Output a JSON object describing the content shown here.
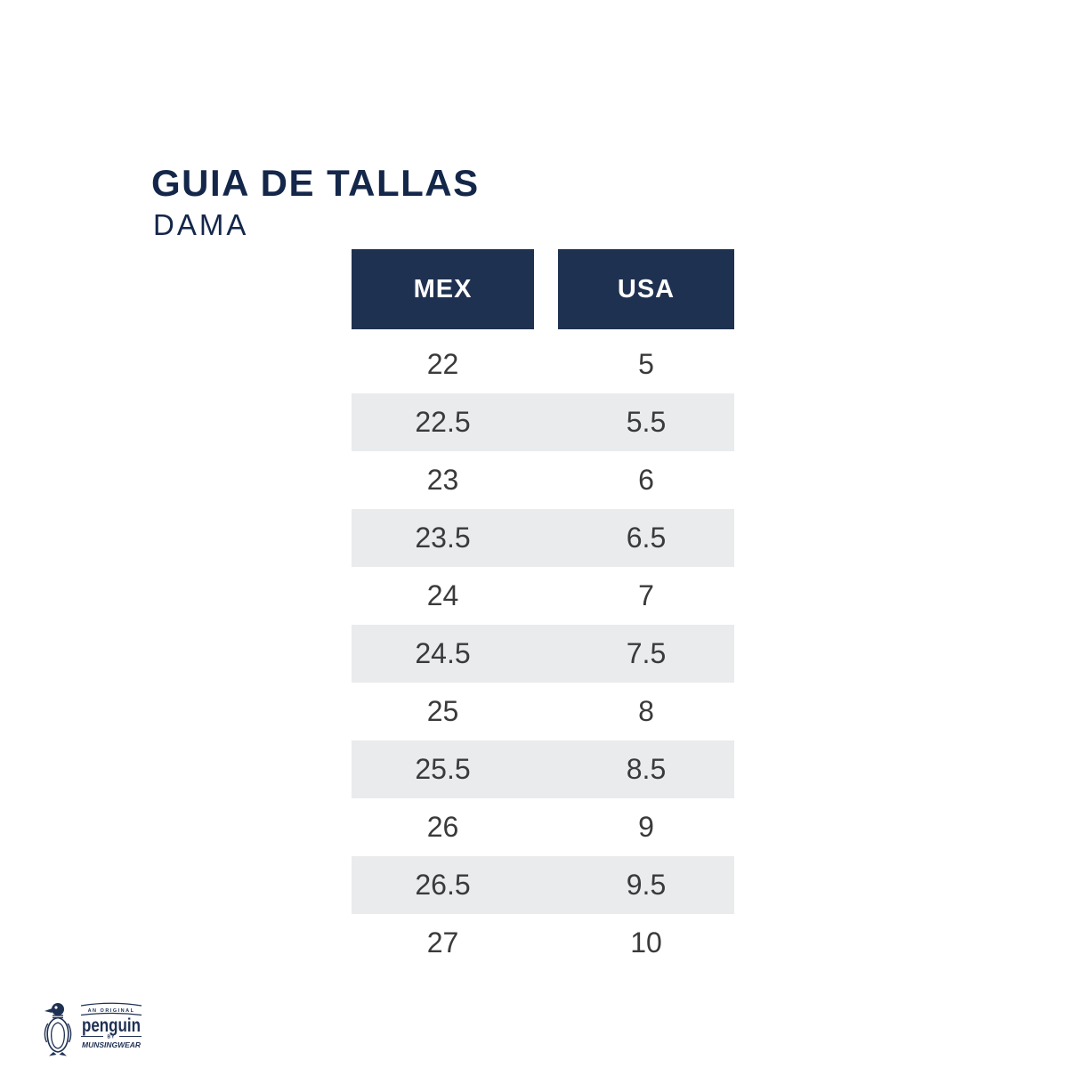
{
  "page": {
    "title": "GUIA DE TALLAS",
    "subtitle": "DAMA"
  },
  "colors": {
    "navy": "#14274a",
    "header_bg": "#1f3150",
    "stripe": "#e9ebed",
    "cell_text": "#3a3a3c",
    "logo_navy": "#1f3153"
  },
  "chart_data": {
    "type": "table",
    "title": "GUIA DE TALLAS",
    "subtitle": "DAMA",
    "columns": [
      "MEX",
      "USA"
    ],
    "rows": [
      [
        "22",
        "5"
      ],
      [
        "22.5",
        "5.5"
      ],
      [
        "23",
        "6"
      ],
      [
        "23.5",
        "6.5"
      ],
      [
        "24",
        "7"
      ],
      [
        "24.5",
        "7.5"
      ],
      [
        "25",
        "8"
      ],
      [
        "25.5",
        "8.5"
      ],
      [
        "26",
        "9"
      ],
      [
        "26.5",
        "9.5"
      ],
      [
        "27",
        "10"
      ]
    ],
    "layout_hints": {
      "stripe_pattern": "alternating rows shaded, first row white",
      "header_style": "solid navy boxes with white text, one per column"
    }
  },
  "logo": {
    "pretext": "AN ORIGINAL",
    "brand": "penguin",
    "midtext": "BY",
    "subtext": "MUNSINGWEAR"
  }
}
